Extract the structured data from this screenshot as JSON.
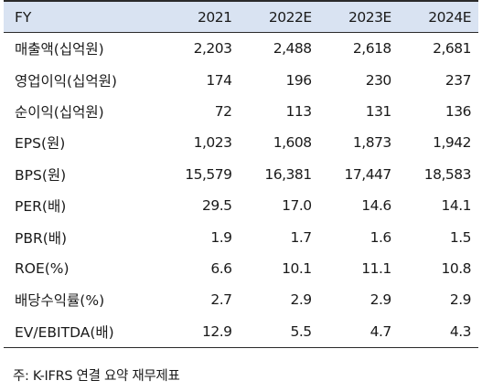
{
  "table": {
    "header": [
      "FY",
      "2021",
      "2022E",
      "2023E",
      "2024E"
    ],
    "rows": [
      {
        "label": "매출액(십억원)",
        "values": [
          "2,203",
          "2,488",
          "2,618",
          "2,681"
        ]
      },
      {
        "label": "영업이익(십억원)",
        "values": [
          "174",
          "196",
          "230",
          "237"
        ]
      },
      {
        "label": "순이익(십억원)",
        "values": [
          "72",
          "113",
          "131",
          "136"
        ]
      },
      {
        "label": "EPS(원)",
        "values": [
          "1,023",
          "1,608",
          "1,873",
          "1,942"
        ]
      },
      {
        "label": "BPS(원)",
        "values": [
          "15,579",
          "16,381",
          "17,447",
          "18,583"
        ]
      },
      {
        "label": "PER(배)",
        "values": [
          "29.5",
          "17.0",
          "14.6",
          "14.1"
        ]
      },
      {
        "label": "PBR(배)",
        "values": [
          "1.9",
          "1.7",
          "1.6",
          "1.5"
        ]
      },
      {
        "label": "ROE(%)",
        "values": [
          "6.6",
          "10.1",
          "11.1",
          "10.8"
        ]
      },
      {
        "label": "배당수익률(%)",
        "values": [
          "2.7",
          "2.9",
          "2.9",
          "2.9"
        ]
      },
      {
        "label": "EV/EBITDA(배)",
        "values": [
          "12.9",
          "5.5",
          "4.7",
          "4.3"
        ]
      }
    ]
  },
  "footnote": "주: K-IFRS 연결 요약 재무제표",
  "colors": {
    "header_bg": "#d9e3f2",
    "rule": "#2a2a2a",
    "text": "#1a1a1a"
  }
}
